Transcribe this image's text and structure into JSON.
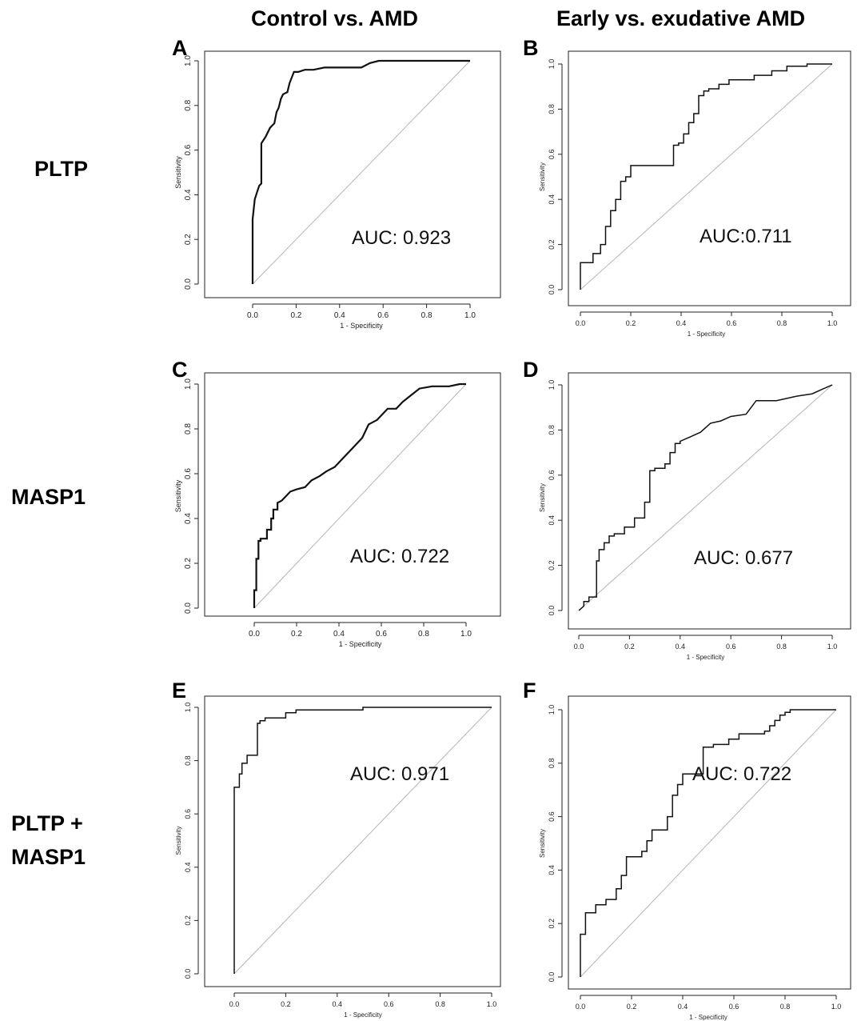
{
  "column_headers": [
    "Control vs. AMD",
    "Early vs. exudative AMD"
  ],
  "row_headers": [
    "PLTP",
    "MASP1",
    "PLTP +\nMASP1"
  ],
  "chart_data": [
    {
      "type": "line",
      "panel": "A",
      "xlabel": "1 - Specificity",
      "ylabel": "Sensitivity",
      "xlim": [
        0,
        1
      ],
      "ylim": [
        0,
        1
      ],
      "x_ticks": [
        "0.0",
        "0.2",
        "0.4",
        "0.6",
        "0.8",
        "1.0"
      ],
      "y_ticks": [
        "0.0",
        "0.2",
        "0.4",
        "0.6",
        "0.8",
        "1.0"
      ],
      "annotation": "AUC: 0.923",
      "series": [
        {
          "x": [
            0,
            0,
            0.01,
            0.02,
            0.03,
            0.04,
            0.04,
            0.06,
            0.08,
            0.09,
            0.1,
            0.11,
            0.12,
            0.13,
            0.14,
            0.16,
            0.17,
            0.19,
            0.21,
            0.24,
            0.28,
            0.33,
            0.38,
            0.42,
            0.5,
            0.54,
            0.58,
            0.6,
            0.65,
            0.7,
            1.0
          ],
          "y": [
            0,
            0.29,
            0.38,
            0.41,
            0.44,
            0.45,
            0.63,
            0.66,
            0.7,
            0.71,
            0.72,
            0.77,
            0.79,
            0.83,
            0.85,
            0.86,
            0.9,
            0.95,
            0.95,
            0.96,
            0.96,
            0.97,
            0.97,
            0.97,
            0.97,
            0.99,
            1.0,
            1.0,
            1.0,
            1.0,
            1.0
          ]
        }
      ]
    },
    {
      "type": "line",
      "panel": "B",
      "xlabel": "1 - Specificity",
      "ylabel": "Sensitivity",
      "xlim": [
        0,
        1
      ],
      "ylim": [
        0,
        1
      ],
      "x_ticks": [
        "0.0",
        "0.2",
        "0.4",
        "0.6",
        "0.8",
        "1.0"
      ],
      "y_ticks": [
        "0.0",
        "0.2",
        "0.4",
        "0.6",
        "0.8",
        "1.0"
      ],
      "annotation": "AUC:0.711",
      "series": [
        {
          "x": [
            0,
            0,
            0.05,
            0.05,
            0.08,
            0.08,
            0.1,
            0.1,
            0.12,
            0.12,
            0.14,
            0.14,
            0.16,
            0.16,
            0.18,
            0.18,
            0.2,
            0.2,
            0.22,
            0.22,
            0.37,
            0.37,
            0.39,
            0.39,
            0.41,
            0.41,
            0.43,
            0.43,
            0.45,
            0.45,
            0.47,
            0.47,
            0.49,
            0.49,
            0.51,
            0.51,
            0.55,
            0.55,
            0.59,
            0.59,
            0.69,
            0.69,
            0.76,
            0.76,
            0.82,
            0.82,
            0.9,
            0.9,
            1.0
          ],
          "y": [
            0,
            0.12,
            0.12,
            0.16,
            0.16,
            0.2,
            0.2,
            0.28,
            0.28,
            0.35,
            0.35,
            0.4,
            0.4,
            0.48,
            0.48,
            0.5,
            0.5,
            0.55,
            0.55,
            0.55,
            0.55,
            0.64,
            0.64,
            0.65,
            0.65,
            0.69,
            0.69,
            0.74,
            0.74,
            0.78,
            0.78,
            0.86,
            0.86,
            0.88,
            0.88,
            0.89,
            0.89,
            0.91,
            0.91,
            0.93,
            0.93,
            0.95,
            0.95,
            0.97,
            0.97,
            0.99,
            0.99,
            1.0,
            1.0
          ]
        }
      ]
    },
    {
      "type": "line",
      "panel": "C",
      "xlabel": "1 - Specificity",
      "ylabel": "Sensitivity",
      "xlim": [
        0,
        1
      ],
      "ylim": [
        0,
        1
      ],
      "x_ticks": [
        "0.0",
        "0.2",
        "0.4",
        "0.6",
        "0.8",
        "1.0"
      ],
      "y_ticks": [
        "0.0",
        "0.2",
        "0.4",
        "0.6",
        "0.8",
        "1.0"
      ],
      "annotation": "AUC: 0.722",
      "series": [
        {
          "x": [
            0,
            0,
            0.01,
            0.01,
            0.02,
            0.02,
            0.03,
            0.03,
            0.06,
            0.06,
            0.08,
            0.08,
            0.09,
            0.09,
            0.11,
            0.11,
            0.13,
            0.15,
            0.17,
            0.2,
            0.24,
            0.27,
            0.31,
            0.34,
            0.38,
            0.42,
            0.45,
            0.48,
            0.51,
            0.54,
            0.58,
            0.63,
            0.67,
            0.7,
            0.74,
            0.78,
            0.84,
            0.92,
            0.97,
            1.0
          ],
          "y": [
            0,
            0.08,
            0.08,
            0.22,
            0.22,
            0.3,
            0.3,
            0.31,
            0.31,
            0.35,
            0.35,
            0.4,
            0.4,
            0.44,
            0.44,
            0.47,
            0.48,
            0.5,
            0.52,
            0.53,
            0.54,
            0.57,
            0.59,
            0.61,
            0.63,
            0.67,
            0.7,
            0.73,
            0.76,
            0.82,
            0.84,
            0.89,
            0.89,
            0.92,
            0.95,
            0.98,
            0.99,
            0.99,
            1.0,
            1.0
          ]
        }
      ]
    },
    {
      "type": "line",
      "panel": "D",
      "xlabel": "1 - Specificity",
      "ylabel": "Sensitivity",
      "xlim": [
        0,
        1
      ],
      "ylim": [
        0,
        1
      ],
      "x_ticks": [
        "0.0",
        "0.2",
        "0.4",
        "0.6",
        "0.8",
        "1.0"
      ],
      "y_ticks": [
        "0.0",
        "0.2",
        "0.4",
        "0.6",
        "0.8",
        "1.0"
      ],
      "annotation": "AUC: 0.677",
      "series": [
        {
          "x": [
            0,
            0.02,
            0.02,
            0.04,
            0.04,
            0.07,
            0.07,
            0.08,
            0.08,
            0.1,
            0.1,
            0.12,
            0.12,
            0.14,
            0.14,
            0.18,
            0.18,
            0.22,
            0.22,
            0.26,
            0.26,
            0.28,
            0.28,
            0.3,
            0.3,
            0.34,
            0.34,
            0.36,
            0.36,
            0.38,
            0.38,
            0.4,
            0.4,
            0.44,
            0.48,
            0.52,
            0.56,
            0.6,
            0.66,
            0.7,
            0.78,
            0.86,
            0.92,
            0.96,
            1.0
          ],
          "y": [
            0,
            0.02,
            0.04,
            0.04,
            0.06,
            0.06,
            0.22,
            0.22,
            0.27,
            0.27,
            0.3,
            0.3,
            0.33,
            0.33,
            0.34,
            0.34,
            0.37,
            0.37,
            0.41,
            0.41,
            0.48,
            0.48,
            0.62,
            0.62,
            0.63,
            0.63,
            0.65,
            0.65,
            0.7,
            0.7,
            0.74,
            0.74,
            0.75,
            0.77,
            0.79,
            0.83,
            0.84,
            0.86,
            0.87,
            0.93,
            0.93,
            0.95,
            0.96,
            0.98,
            1.0
          ]
        }
      ]
    },
    {
      "type": "line",
      "panel": "E",
      "xlabel": "1 - Specificity",
      "ylabel": "Sensitivity",
      "xlim": [
        0,
        1
      ],
      "ylim": [
        0,
        1
      ],
      "x_ticks": [
        "0.0",
        "0.2",
        "0.4",
        "0.6",
        "0.8",
        "1.0"
      ],
      "y_ticks": [
        "0.0",
        "0.2",
        "0.4",
        "0.6",
        "0.8",
        "1.0"
      ],
      "annotation": "AUC: 0.971",
      "series": [
        {
          "x": [
            0,
            0,
            0.02,
            0.02,
            0.03,
            0.03,
            0.05,
            0.05,
            0.09,
            0.09,
            0.1,
            0.1,
            0.12,
            0.12,
            0.13,
            0.13,
            0.2,
            0.2,
            0.24,
            0.24,
            0.5,
            0.5,
            1.0
          ],
          "y": [
            0,
            0.7,
            0.7,
            0.75,
            0.75,
            0.79,
            0.79,
            0.82,
            0.82,
            0.94,
            0.94,
            0.95,
            0.95,
            0.96,
            0.96,
            0.96,
            0.96,
            0.98,
            0.98,
            0.99,
            0.99,
            1.0,
            1.0
          ]
        }
      ]
    },
    {
      "type": "line",
      "panel": "F",
      "xlabel": "1 - Specificity",
      "ylabel": "Sensitivity",
      "xlim": [
        0,
        1
      ],
      "ylim": [
        0,
        1
      ],
      "x_ticks": [
        "0.0",
        "0.2",
        "0.4",
        "0.6",
        "0.8",
        "1.0"
      ],
      "y_ticks": [
        "0.0",
        "0.2",
        "0.4",
        "0.6",
        "0.8",
        "1.0"
      ],
      "annotation": "AUC: 0.722",
      "series": [
        {
          "x": [
            0,
            0,
            0.02,
            0.02,
            0.06,
            0.06,
            0.1,
            0.1,
            0.14,
            0.14,
            0.16,
            0.16,
            0.18,
            0.18,
            0.2,
            0.2,
            0.24,
            0.24,
            0.26,
            0.26,
            0.28,
            0.28,
            0.34,
            0.34,
            0.36,
            0.36,
            0.38,
            0.38,
            0.4,
            0.4,
            0.48,
            0.48,
            0.52,
            0.52,
            0.58,
            0.58,
            0.62,
            0.62,
            0.66,
            0.66,
            0.72,
            0.72,
            0.74,
            0.74,
            0.76,
            0.76,
            0.78,
            0.78,
            0.8,
            0.8,
            0.82,
            0.82,
            0.88,
            0.88,
            1.0
          ],
          "y": [
            0,
            0.16,
            0.16,
            0.24,
            0.24,
            0.27,
            0.27,
            0.29,
            0.29,
            0.33,
            0.33,
            0.38,
            0.38,
            0.45,
            0.45,
            0.45,
            0.45,
            0.47,
            0.47,
            0.51,
            0.51,
            0.55,
            0.55,
            0.6,
            0.6,
            0.68,
            0.68,
            0.72,
            0.72,
            0.76,
            0.76,
            0.86,
            0.86,
            0.87,
            0.87,
            0.89,
            0.89,
            0.91,
            0.91,
            0.91,
            0.91,
            0.92,
            0.92,
            0.94,
            0.94,
            0.96,
            0.96,
            0.98,
            0.98,
            0.99,
            0.99,
            1.0,
            1.0,
            1.0,
            1.0
          ]
        }
      ]
    }
  ]
}
